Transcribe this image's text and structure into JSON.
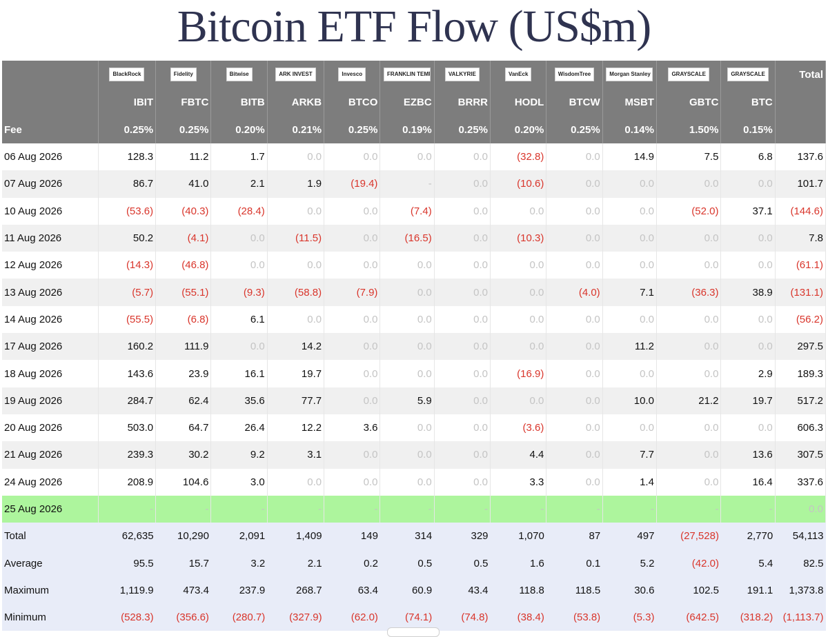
{
  "title": "Bitcoin ETF Flow (US$m)",
  "colors": {
    "header_bg": "#7d7d7d",
    "negative": "#d9352b",
    "zero": "#c4c4c4",
    "highlight_row": "#adf59d",
    "summary_bg": "#e8ecf8"
  },
  "table": {
    "issuer_logos": [
      "BlackRock",
      "Fidelity",
      "Bitwise",
      "ARK INVEST",
      "Invesco",
      "FRANKLIN TEMPLETON",
      "VALKYRIE",
      "VanEck",
      "WisdomTree",
      "Morgan Stanley",
      "GRAYSCALE",
      "GRAYSCALE"
    ],
    "total_label": "Total",
    "tickers": [
      "IBIT",
      "FBTC",
      "BITB",
      "ARKB",
      "BTCO",
      "EZBC",
      "BRRR",
      "HODL",
      "BTCW",
      "MSBT",
      "GBTC",
      "BTC"
    ],
    "fee_label": "Fee",
    "fees": [
      "0.25%",
      "0.25%",
      "0.20%",
      "0.21%",
      "0.25%",
      "0.19%",
      "0.25%",
      "0.20%",
      "0.25%",
      "0.14%",
      "1.50%",
      "0.15%"
    ],
    "rows": [
      {
        "date": "06 Aug 2026",
        "cells": [
          "128.3",
          "11.2",
          "1.7",
          "0.0",
          "0.0",
          "0.0",
          "0.0",
          "(32.8)",
          "0.0",
          "14.9",
          "7.5",
          "6.8"
        ],
        "total": "137.6"
      },
      {
        "date": "07 Aug 2026",
        "cells": [
          "86.7",
          "41.0",
          "2.1",
          "1.9",
          "(19.4)",
          "-",
          "0.0",
          "(10.6)",
          "0.0",
          "0.0",
          "0.0",
          "0.0"
        ],
        "total": "101.7"
      },
      {
        "date": "10 Aug 2026",
        "cells": [
          "(53.6)",
          "(40.3)",
          "(28.4)",
          "0.0",
          "0.0",
          "(7.4)",
          "0.0",
          "0.0",
          "0.0",
          "0.0",
          "(52.0)",
          "37.1"
        ],
        "total": "(144.6)"
      },
      {
        "date": "11 Aug 2026",
        "cells": [
          "50.2",
          "(4.1)",
          "0.0",
          "(11.5)",
          "0.0",
          "(16.5)",
          "0.0",
          "(10.3)",
          "0.0",
          "0.0",
          "0.0",
          "0.0"
        ],
        "total": "7.8"
      },
      {
        "date": "12 Aug 2026",
        "cells": [
          "(14.3)",
          "(46.8)",
          "0.0",
          "0.0",
          "0.0",
          "0.0",
          "0.0",
          "0.0",
          "0.0",
          "0.0",
          "0.0",
          "0.0"
        ],
        "total": "(61.1)"
      },
      {
        "date": "13 Aug 2026",
        "cells": [
          "(5.7)",
          "(55.1)",
          "(9.3)",
          "(58.8)",
          "(7.9)",
          "0.0",
          "0.0",
          "0.0",
          "(4.0)",
          "7.1",
          "(36.3)",
          "38.9"
        ],
        "total": "(131.1)"
      },
      {
        "date": "14 Aug 2026",
        "cells": [
          "(55.5)",
          "(6.8)",
          "6.1",
          "0.0",
          "0.0",
          "0.0",
          "0.0",
          "0.0",
          "0.0",
          "0.0",
          "0.0",
          "0.0"
        ],
        "total": "(56.2)"
      },
      {
        "date": "17 Aug 2026",
        "cells": [
          "160.2",
          "111.9",
          "0.0",
          "14.2",
          "0.0",
          "0.0",
          "0.0",
          "0.0",
          "0.0",
          "11.2",
          "0.0",
          "0.0"
        ],
        "total": "297.5"
      },
      {
        "date": "18 Aug 2026",
        "cells": [
          "143.6",
          "23.9",
          "16.1",
          "19.7",
          "0.0",
          "0.0",
          "0.0",
          "(16.9)",
          "0.0",
          "0.0",
          "0.0",
          "2.9"
        ],
        "total": "189.3"
      },
      {
        "date": "19 Aug 2026",
        "cells": [
          "284.7",
          "62.4",
          "35.6",
          "77.7",
          "0.0",
          "5.9",
          "0.0",
          "0.0",
          "0.0",
          "10.0",
          "21.2",
          "19.7"
        ],
        "total": "517.2"
      },
      {
        "date": "20 Aug 2026",
        "cells": [
          "503.0",
          "64.7",
          "26.4",
          "12.2",
          "3.6",
          "0.0",
          "0.0",
          "(3.6)",
          "0.0",
          "0.0",
          "0.0",
          "0.0"
        ],
        "total": "606.3"
      },
      {
        "date": "21 Aug 2026",
        "cells": [
          "239.3",
          "30.2",
          "9.2",
          "3.1",
          "0.0",
          "0.0",
          "0.0",
          "4.4",
          "0.0",
          "7.7",
          "0.0",
          "13.6"
        ],
        "total": "307.5"
      },
      {
        "date": "24 Aug 2026",
        "cells": [
          "208.9",
          "104.6",
          "3.0",
          "0.0",
          "0.0",
          "0.0",
          "0.0",
          "3.3",
          "0.0",
          "1.4",
          "0.0",
          "16.4"
        ],
        "total": "337.6"
      },
      {
        "date": "25 Aug 2026",
        "cells": [
          "-",
          "-",
          "-",
          "-",
          "-",
          "-",
          "-",
          "-",
          "-",
          "-",
          "-",
          "-"
        ],
        "total": "0.0",
        "highlight": true
      }
    ],
    "summary": [
      {
        "label": "Total",
        "cells": [
          "62,635",
          "10,290",
          "2,091",
          "1,409",
          "149",
          "314",
          "329",
          "1,070",
          "87",
          "497",
          "(27,528)",
          "2,770"
        ],
        "total": "54,113"
      },
      {
        "label": "Average",
        "cells": [
          "95.5",
          "15.7",
          "3.2",
          "2.1",
          "0.2",
          "0.5",
          "0.5",
          "1.6",
          "0.1",
          "5.2",
          "(42.0)",
          "5.4"
        ],
        "total": "82.5"
      },
      {
        "label": "Maximum",
        "cells": [
          "1,119.9",
          "473.4",
          "237.9",
          "268.7",
          "63.4",
          "60.9",
          "43.4",
          "118.8",
          "118.5",
          "30.6",
          "102.5",
          "191.1"
        ],
        "total": "1,373.8"
      },
      {
        "label": "Minimum",
        "cells": [
          "(528.3)",
          "(356.6)",
          "(280.7)",
          "(327.9)",
          "(62.0)",
          "(74.1)",
          "(74.8)",
          "(38.4)",
          "(53.8)",
          "(5.3)",
          "(642.5)",
          "(318.2)"
        ],
        "total": "(1,113.7)"
      }
    ]
  },
  "chart_data": {
    "type": "table",
    "title": "Bitcoin ETF Flow (US$m)",
    "columns": [
      "IBIT",
      "FBTC",
      "BITB",
      "ARKB",
      "BTCO",
      "EZBC",
      "BRRR",
      "HODL",
      "BTCW",
      "MSBT",
      "GBTC",
      "BTC",
      "Total"
    ],
    "dates": [
      "06 Aug 2026",
      "07 Aug 2026",
      "10 Aug 2026",
      "11 Aug 2026",
      "12 Aug 2026",
      "13 Aug 2026",
      "14 Aug 2026",
      "17 Aug 2026",
      "18 Aug 2026",
      "19 Aug 2026",
      "20 Aug 2026",
      "21 Aug 2026",
      "24 Aug 2026",
      "25 Aug 2026"
    ],
    "daily_totals": [
      137.6,
      101.7,
      -144.6,
      7.8,
      -61.1,
      -131.1,
      -56.2,
      297.5,
      189.3,
      517.2,
      606.3,
      307.5,
      337.6,
      0.0
    ]
  }
}
